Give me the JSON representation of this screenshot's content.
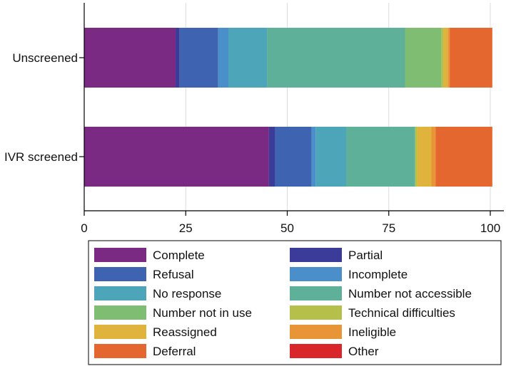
{
  "chart_data": {
    "type": "bar",
    "orientation": "horizontal",
    "stacked": true,
    "title": "",
    "xlabel": "",
    "ylabel": "",
    "xlim": [
      0,
      100
    ],
    "x_ticks": [
      0,
      25,
      50,
      75,
      100
    ],
    "x_tick_labels": [
      "0",
      "25",
      "50",
      "75",
      "100"
    ],
    "grid": true,
    "legend_position": "bottom",
    "categories": [
      "Unscreened",
      "IVR screened"
    ],
    "series": [
      {
        "name": "Complete",
        "color": "#7a2a82",
        "values": [
          22.5,
          45.5
        ]
      },
      {
        "name": "Partial",
        "color": "#3b3b9a",
        "values": [
          1.0,
          1.5
        ]
      },
      {
        "name": "Refusal",
        "color": "#3e64b1",
        "values": [
          9.5,
          9.0
        ]
      },
      {
        "name": "Incomplete",
        "color": "#4a8fc9",
        "values": [
          2.5,
          1.0
        ]
      },
      {
        "name": "No response",
        "color": "#4da5b9",
        "values": [
          9.5,
          7.5
        ]
      },
      {
        "name": "Number not accessible",
        "color": "#5fb099",
        "values": [
          34.0,
          17.0
        ]
      },
      {
        "name": "Number not in use",
        "color": "#7fbd72",
        "values": [
          9.0,
          0.0
        ]
      },
      {
        "name": "Technical difficulties",
        "color": "#b5c04a",
        "values": [
          0.5,
          0.5
        ]
      },
      {
        "name": "Reassigned",
        "color": "#e0b43c",
        "values": [
          1.0,
          3.5
        ]
      },
      {
        "name": "Ineligible",
        "color": "#e89537",
        "values": [
          0.5,
          1.0
        ]
      },
      {
        "name": "Deferral",
        "color": "#e4672f",
        "values": [
          10.5,
          14.0
        ]
      },
      {
        "name": "Other",
        "color": "#d9262a",
        "values": [
          0.0,
          0.0
        ]
      }
    ]
  }
}
